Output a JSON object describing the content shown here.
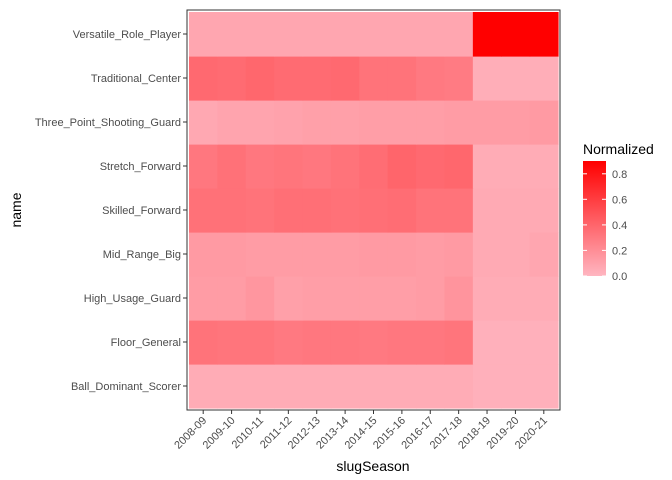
{
  "chart_data": {
    "type": "heatmap",
    "xlabel": "slugSeason",
    "ylabel": "name",
    "x": [
      "2008-09",
      "2009-10",
      "2010-11",
      "2011-12",
      "2012-13",
      "2013-14",
      "2014-15",
      "2015-16",
      "2016-17",
      "2017-18",
      "2018-19",
      "2019-20",
      "2020-21"
    ],
    "y": [
      "Ball_Dominant_Scorer",
      "Floor_General",
      "High_Usage_Guard",
      "Mid_Range_Big",
      "Skilled_Forward",
      "Stretch_Forward",
      "Three_Point_Shooting_Guard",
      "Traditional_Center",
      "Versatile_Role_Player"
    ],
    "values": [
      [
        0.05,
        0.05,
        0.05,
        0.05,
        0.05,
        0.05,
        0.05,
        0.05,
        0.05,
        0.05,
        0.03,
        0.03,
        0.03
      ],
      [
        0.33,
        0.32,
        0.32,
        0.3,
        0.31,
        0.31,
        0.3,
        0.31,
        0.31,
        0.32,
        0.03,
        0.03,
        0.03
      ],
      [
        0.13,
        0.13,
        0.16,
        0.11,
        0.12,
        0.12,
        0.12,
        0.12,
        0.13,
        0.17,
        0.05,
        0.05,
        0.05
      ],
      [
        0.14,
        0.14,
        0.13,
        0.13,
        0.13,
        0.13,
        0.14,
        0.14,
        0.13,
        0.14,
        0.06,
        0.06,
        0.08
      ],
      [
        0.34,
        0.34,
        0.33,
        0.35,
        0.35,
        0.34,
        0.35,
        0.36,
        0.33,
        0.33,
        0.06,
        0.06,
        0.06
      ],
      [
        0.31,
        0.34,
        0.31,
        0.32,
        0.31,
        0.33,
        0.36,
        0.4,
        0.38,
        0.39,
        0.05,
        0.05,
        0.05
      ],
      [
        0.07,
        0.09,
        0.09,
        0.1,
        0.11,
        0.11,
        0.12,
        0.12,
        0.12,
        0.13,
        0.13,
        0.13,
        0.14
      ],
      [
        0.38,
        0.37,
        0.39,
        0.37,
        0.37,
        0.38,
        0.33,
        0.33,
        0.3,
        0.29,
        0.04,
        0.04,
        0.04
      ],
      [
        0.08,
        0.08,
        0.08,
        0.08,
        0.08,
        0.08,
        0.08,
        0.08,
        0.08,
        0.08,
        0.9,
        0.9,
        0.9
      ]
    ],
    "color_scale": {
      "low": "#FFB6C1",
      "high": "#FF0000",
      "min": 0,
      "max": 0.9
    },
    "legend": {
      "title": "Normalized",
      "ticks": [
        0.0,
        0.2,
        0.4,
        0.6,
        0.8
      ],
      "tick_labels": [
        "0.0",
        "0.2",
        "0.4",
        "0.6",
        "0.8"
      ],
      "placement": "right"
    },
    "grid": false
  }
}
